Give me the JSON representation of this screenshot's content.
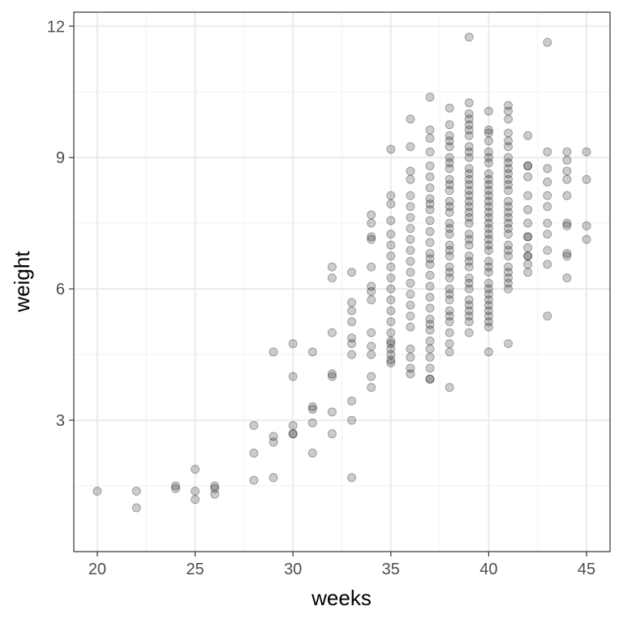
{
  "chart_data": {
    "type": "scatter",
    "xlabel": "weeks",
    "ylabel": "weight",
    "xlim": [
      18.8,
      46.2
    ],
    "ylim": [
      0.0,
      12.32
    ],
    "xticks": [
      20,
      25,
      30,
      35,
      40,
      45
    ],
    "yticks": [
      3,
      6,
      9,
      12
    ],
    "xtick_labels": [
      "20",
      "25",
      "30",
      "35",
      "40",
      "45"
    ],
    "ytick_labels": [
      "3",
      "6",
      "9",
      "12"
    ],
    "grid": true,
    "point_color": "#000000",
    "point_alpha": 0.2,
    "series": [
      {
        "x": [
          20,
          22,
          22,
          24,
          24,
          25,
          25,
          25,
          26,
          26,
          26,
          28,
          28,
          28,
          29,
          29,
          29,
          29,
          30,
          30,
          30,
          30,
          30,
          31,
          31,
          31,
          31,
          31,
          32,
          32,
          32,
          32,
          32,
          32,
          32,
          33,
          33,
          33,
          33,
          33,
          33,
          33,
          33,
          33,
          33,
          34,
          34,
          34,
          34,
          34,
          34,
          34,
          34,
          34,
          34,
          34,
          34,
          34,
          35,
          35,
          35,
          35,
          35,
          35,
          35,
          35,
          35,
          35,
          35,
          35,
          35,
          35,
          35,
          35,
          35,
          35,
          35,
          35,
          36,
          36,
          36,
          36,
          36,
          36,
          36,
          36,
          36,
          36,
          36,
          36,
          36,
          36,
          36,
          36,
          36,
          36,
          36,
          36,
          36,
          37,
          37,
          37,
          37,
          37,
          37,
          37,
          37,
          37,
          37,
          37,
          37,
          37,
          37,
          37,
          37,
          37,
          37,
          37,
          37,
          37,
          37,
          37,
          37,
          37,
          37,
          37,
          37,
          37,
          38,
          38,
          38,
          38,
          38,
          38,
          38,
          38,
          38,
          38,
          38,
          38,
          38,
          38,
          38,
          38,
          38,
          38,
          38,
          38,
          38,
          38,
          38,
          38,
          38,
          38,
          38,
          38,
          38,
          38,
          38,
          38,
          38,
          39,
          39,
          39,
          39,
          39,
          39,
          39,
          39,
          39,
          39,
          39,
          39,
          39,
          39,
          39,
          39,
          39,
          39,
          39,
          39,
          39,
          39,
          39,
          39,
          39,
          39,
          39,
          39,
          39,
          39,
          39,
          39,
          39,
          39,
          39,
          39,
          40,
          40,
          40,
          40,
          40,
          40,
          40,
          40,
          40,
          40,
          40,
          40,
          40,
          40,
          40,
          40,
          40,
          40,
          40,
          40,
          40,
          40,
          40,
          40,
          40,
          40,
          40,
          40,
          40,
          40,
          40,
          40,
          40,
          40,
          40,
          41,
          41,
          41,
          41,
          41,
          41,
          41,
          41,
          41,
          41,
          41,
          41,
          41,
          41,
          41,
          41,
          41,
          41,
          41,
          41,
          41,
          41,
          41,
          41,
          41,
          41,
          41,
          41,
          41,
          42,
          42,
          42,
          42,
          42,
          42,
          42,
          42,
          42,
          42,
          42,
          42,
          42,
          42,
          43,
          43,
          43,
          43,
          43,
          43,
          43,
          43,
          43,
          43,
          43,
          44,
          44,
          44,
          44,
          44,
          44,
          44,
          44,
          44,
          44,
          45,
          45,
          45,
          45
        ],
        "y": [
          1.38,
          1.38,
          1.0,
          1.5,
          1.44,
          1.88,
          1.38,
          1.19,
          1.5,
          1.44,
          1.31,
          2.88,
          2.25,
          1.63,
          4.56,
          2.63,
          2.5,
          1.69,
          4.75,
          4.0,
          2.88,
          2.69,
          2.69,
          4.56,
          3.31,
          3.25,
          2.94,
          2.25,
          6.5,
          6.25,
          5.0,
          4.06,
          4.0,
          3.19,
          2.69,
          6.38,
          5.69,
          5.5,
          5.25,
          4.88,
          4.75,
          4.5,
          3.44,
          3.0,
          1.69,
          7.69,
          7.5,
          7.19,
          7.13,
          6.5,
          6.06,
          5.94,
          5.75,
          5.0,
          4.69,
          4.5,
          4.0,
          3.75,
          9.19,
          8.13,
          7.94,
          7.56,
          7.25,
          7.0,
          6.75,
          6.5,
          6.25,
          6.0,
          5.75,
          5.5,
          5.25,
          5.0,
          4.81,
          4.75,
          4.63,
          4.5,
          4.38,
          4.31,
          9.88,
          9.25,
          8.69,
          8.5,
          8.13,
          7.88,
          7.63,
          7.38,
          7.13,
          6.88,
          6.63,
          6.38,
          6.13,
          5.88,
          5.63,
          5.38,
          5.13,
          4.63,
          4.44,
          4.19,
          4.06,
          10.38,
          9.63,
          9.44,
          9.13,
          8.81,
          8.56,
          8.31,
          8.06,
          7.81,
          7.56,
          7.31,
          7.06,
          6.81,
          6.56,
          6.31,
          6.06,
          5.81,
          5.56,
          5.31,
          5.06,
          4.81,
          4.63,
          4.44,
          4.19,
          3.94,
          3.94,
          5.19,
          6.69,
          7.94,
          10.13,
          9.75,
          9.5,
          9.25,
          9.0,
          8.75,
          8.5,
          8.25,
          8.0,
          7.75,
          7.5,
          7.25,
          7.0,
          6.75,
          6.5,
          6.25,
          6.0,
          5.75,
          5.5,
          5.25,
          5.0,
          4.75,
          4.56,
          3.75,
          9.38,
          8.88,
          8.38,
          7.88,
          7.38,
          6.88,
          6.38,
          5.88,
          5.38,
          11.75,
          10.25,
          10.0,
          9.75,
          9.5,
          9.25,
          9.0,
          8.75,
          8.5,
          8.25,
          8.0,
          7.75,
          7.5,
          7.25,
          7.0,
          6.75,
          6.5,
          6.25,
          6.0,
          5.75,
          5.5,
          5.25,
          5.0,
          9.88,
          9.63,
          9.13,
          8.63,
          8.13,
          7.63,
          7.13,
          6.63,
          6.13,
          5.63,
          5.38,
          7.88,
          8.38,
          10.06,
          9.63,
          9.38,
          9.13,
          8.88,
          8.63,
          8.38,
          8.13,
          7.88,
          7.63,
          7.38,
          7.13,
          6.88,
          6.63,
          6.38,
          6.13,
          5.88,
          5.63,
          5.38,
          5.13,
          4.56,
          9.56,
          9.0,
          8.5,
          8.0,
          7.5,
          7.0,
          6.5,
          6.0,
          5.75,
          5.5,
          5.25,
          7.75,
          8.25,
          7.25,
          10.19,
          10.06,
          9.88,
          9.56,
          9.25,
          9.0,
          8.75,
          8.5,
          8.25,
          8.0,
          7.75,
          7.5,
          7.25,
          7.0,
          6.75,
          6.5,
          6.25,
          6.0,
          4.75,
          9.38,
          8.88,
          8.38,
          7.88,
          7.38,
          6.88,
          6.38,
          6.13,
          8.63,
          7.63,
          9.5,
          8.81,
          8.56,
          8.13,
          7.81,
          7.5,
          7.19,
          6.94,
          6.75,
          6.56,
          6.38,
          8.81,
          7.19,
          6.75,
          11.63,
          9.13,
          8.75,
          8.44,
          8.13,
          7.88,
          7.5,
          7.25,
          6.88,
          6.56,
          5.38,
          9.13,
          8.94,
          8.69,
          8.5,
          8.13,
          7.5,
          7.44,
          6.81,
          6.75,
          6.25,
          9.13,
          8.5,
          7.44,
          7.13
        ]
      }
    ]
  }
}
